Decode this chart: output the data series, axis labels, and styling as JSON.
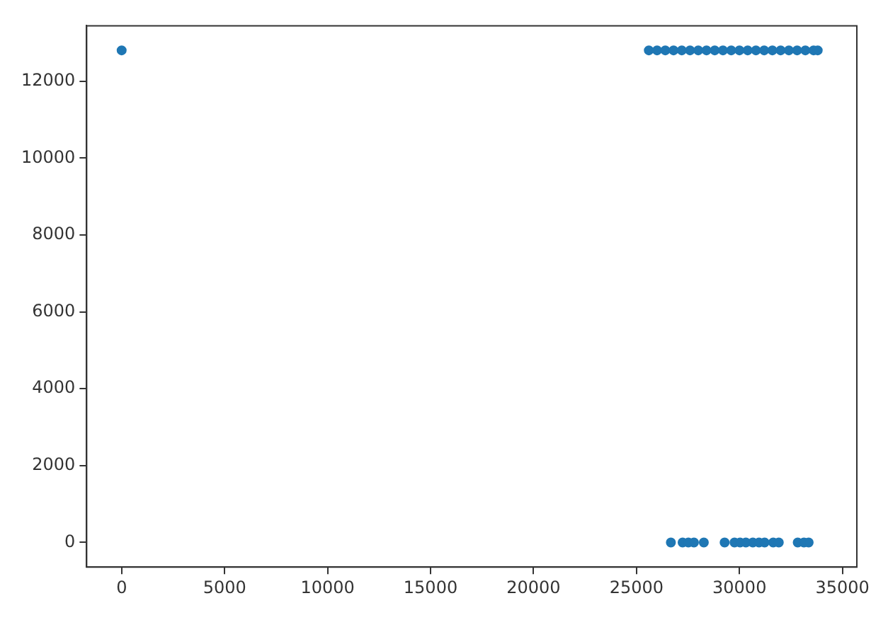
{
  "chart_data": {
    "type": "scatter",
    "marker": "circle",
    "x": [
      0,
      25600,
      26000,
      26400,
      26800,
      27200,
      27600,
      28000,
      28400,
      28800,
      29200,
      29600,
      30000,
      30400,
      30800,
      31200,
      31600,
      32000,
      32400,
      32800,
      33200,
      33600,
      33800,
      26670,
      27240,
      27520,
      27790,
      28270,
      29280,
      29760,
      30030,
      30310,
      30650,
      30950,
      31220,
      31640,
      31910,
      32830,
      33130,
      33360
    ],
    "series": [
      {
        "color": "#1f77b4",
        "values": [
          12800,
          12800,
          12800,
          12800,
          12800,
          12800,
          12800,
          12800,
          12800,
          12800,
          12800,
          12800,
          12800,
          12800,
          12800,
          12800,
          12800,
          12800,
          12800,
          12800,
          12800,
          12800,
          12800,
          0,
          0,
          0,
          0,
          0,
          0,
          0,
          0,
          0,
          0,
          0,
          0,
          0,
          0,
          0,
          0,
          0
        ]
      }
    ],
    "xlim": [
      -1700,
      35700
    ],
    "ylim": [
      -640,
      13440
    ],
    "xticks": [
      0,
      5000,
      10000,
      15000,
      20000,
      25000,
      30000,
      35000
    ],
    "yticks": [
      0,
      2000,
      4000,
      6000,
      8000,
      10000,
      12000
    ]
  }
}
